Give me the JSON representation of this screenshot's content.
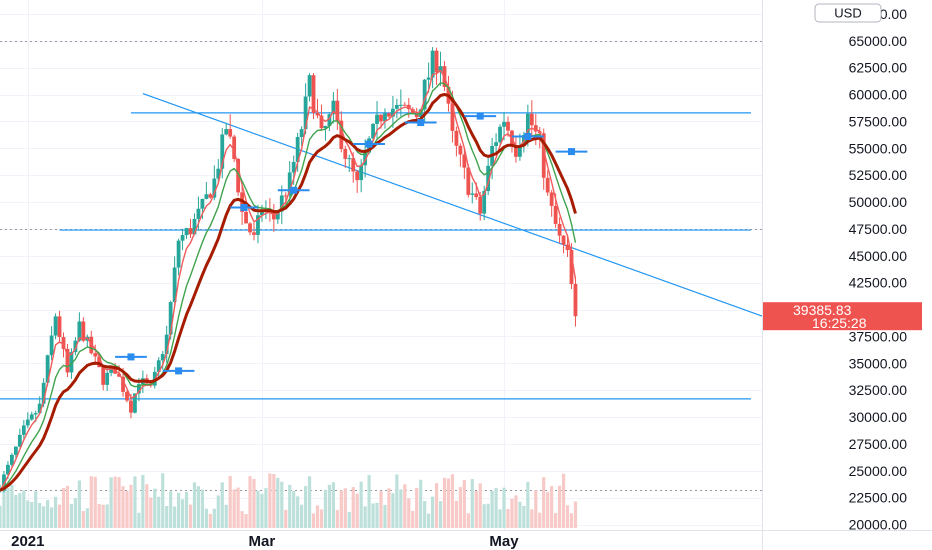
{
  "chart_data": {
    "type": "candlestick",
    "currency": "USD",
    "colors": {
      "up": "#26a69a",
      "down": "#ef5350",
      "ema_fast": "#f15b5b",
      "ema_mid": "#3fa34d",
      "ema_slow": "#a61c00",
      "trendline": "#2196f3",
      "marker": "#2b8cf0",
      "price_label": "#ef5350",
      "volume_up": "#bde0db",
      "volume_down": "#f7c9c7"
    },
    "ylim": [
      19500,
      68800
    ],
    "y_ticks": [
      {
        "v": 67500,
        "label": "67500.00"
      },
      {
        "v": 65000,
        "label": "65000.00"
      },
      {
        "v": 62500,
        "label": "62500.00"
      },
      {
        "v": 60000,
        "label": "60000.00"
      },
      {
        "v": 57500,
        "label": "57500.00"
      },
      {
        "v": 55000,
        "label": "55000.00"
      },
      {
        "v": 52500,
        "label": "52500.00"
      },
      {
        "v": 50000,
        "label": "50000.00"
      },
      {
        "v": 47500,
        "label": "47500.00"
      },
      {
        "v": 45000,
        "label": "45000.00"
      },
      {
        "v": 42500,
        "label": "42500.00"
      },
      {
        "v": 40000,
        "label": "40000.00"
      },
      {
        "v": 37500,
        "label": "37500.00"
      },
      {
        "v": 35000,
        "label": "35000.00"
      },
      {
        "v": 32500,
        "label": "32500.00"
      },
      {
        "v": 30000,
        "label": "30000.00"
      },
      {
        "v": 27500,
        "label": "27500.00"
      },
      {
        "v": 25000,
        "label": "25000.00"
      },
      {
        "v": 22500,
        "label": "22500.00"
      },
      {
        "v": 20000,
        "label": "20000.00"
      }
    ],
    "x_ticks": [
      {
        "date": "2021-01-01",
        "label": "2021"
      },
      {
        "date": "2021-03-01",
        "label": "Mar"
      },
      {
        "date": "2021-05-01",
        "label": "May"
      }
    ],
    "date_range": [
      "2020-12-25",
      "2021-07-05"
    ],
    "last_price": {
      "value": 39385.83,
      "label": "39385.83",
      "countdown": "16:25:28"
    },
    "dotted_levels": [
      65000,
      47500,
      23200
    ],
    "horizontal_lines": [
      {
        "value": 58300,
        "from": "2021-01-27",
        "to": "2021-07-05"
      },
      {
        "value": 47400,
        "from": "2021-01-09",
        "to": "2021-07-05"
      },
      {
        "value": 31700,
        "from": "2020-12-25",
        "to": "2021-07-05"
      }
    ],
    "trendline": {
      "from": [
        "2021-01-30",
        60100
      ],
      "to": [
        "2021-07-05",
        39400
      ]
    },
    "markers": [
      {
        "from": "2021-01-23",
        "to": "2021-01-31",
        "value": 35600
      },
      {
        "from": "2021-02-04",
        "to": "2021-02-12",
        "value": 34300
      },
      {
        "from": "2021-02-21",
        "to": "2021-02-28",
        "value": 49500
      },
      {
        "from": "2021-03-05",
        "to": "2021-03-13",
        "value": 51100
      },
      {
        "from": "2021-03-24",
        "to": "2021-04-01",
        "value": 55400
      },
      {
        "from": "2021-04-06",
        "to": "2021-04-14",
        "value": 57400
      },
      {
        "from": "2021-04-21",
        "to": "2021-04-29",
        "value": 58000
      },
      {
        "from": "2021-05-03",
        "to": "2021-05-11",
        "value": 56100
      },
      {
        "from": "2021-05-14",
        "to": "2021-05-22",
        "value": 54700
      }
    ],
    "anchors": [
      [
        "2020-12-25",
        23600
      ],
      [
        "2020-12-31",
        28800
      ],
      [
        "2021-01-04",
        31000
      ],
      [
        "2021-01-08",
        39500
      ],
      [
        "2021-01-11",
        34000
      ],
      [
        "2021-01-14",
        38500
      ],
      [
        "2021-01-17",
        36000
      ],
      [
        "2021-01-20",
        33500
      ],
      [
        "2021-01-23",
        34500
      ],
      [
        "2021-01-27",
        30900
      ],
      [
        "2021-01-29",
        33500
      ],
      [
        "2021-02-01",
        32500
      ],
      [
        "2021-02-05",
        37500
      ],
      [
        "2021-02-08",
        46500
      ],
      [
        "2021-02-11",
        47500
      ],
      [
        "2021-02-14",
        49500
      ],
      [
        "2021-02-17",
        52000
      ],
      [
        "2021-02-20",
        57000
      ],
      [
        "2021-02-22",
        54000
      ],
      [
        "2021-02-24",
        49000
      ],
      [
        "2021-02-27",
        46500
      ],
      [
        "2021-03-01",
        49500
      ],
      [
        "2021-03-04",
        48500
      ],
      [
        "2021-03-08",
        52000
      ],
      [
        "2021-03-11",
        57000
      ],
      [
        "2021-03-13",
        61000
      ],
      [
        "2021-03-16",
        56000
      ],
      [
        "2021-03-19",
        58500
      ],
      [
        "2021-03-22",
        54500
      ],
      [
        "2021-03-25",
        51500
      ],
      [
        "2021-03-28",
        55500
      ],
      [
        "2021-04-01",
        59000
      ],
      [
        "2021-04-05",
        58500
      ],
      [
        "2021-04-09",
        58200
      ],
      [
        "2021-04-13",
        63000
      ],
      [
        "2021-04-15",
        63200
      ],
      [
        "2021-04-18",
        56000
      ],
      [
        "2021-04-22",
        51500
      ],
      [
        "2021-04-25",
        49000
      ],
      [
        "2021-04-28",
        55000
      ],
      [
        "2021-05-01",
        57800
      ],
      [
        "2021-05-04",
        55000
      ],
      [
        "2021-05-07",
        58000
      ],
      [
        "2021-05-10",
        55500
      ],
      [
        "2021-05-12",
        50500
      ],
      [
        "2021-05-15",
        46500
      ],
      [
        "2021-05-17",
        45000
      ],
      [
        "2021-05-19",
        39385
      ]
    ]
  }
}
